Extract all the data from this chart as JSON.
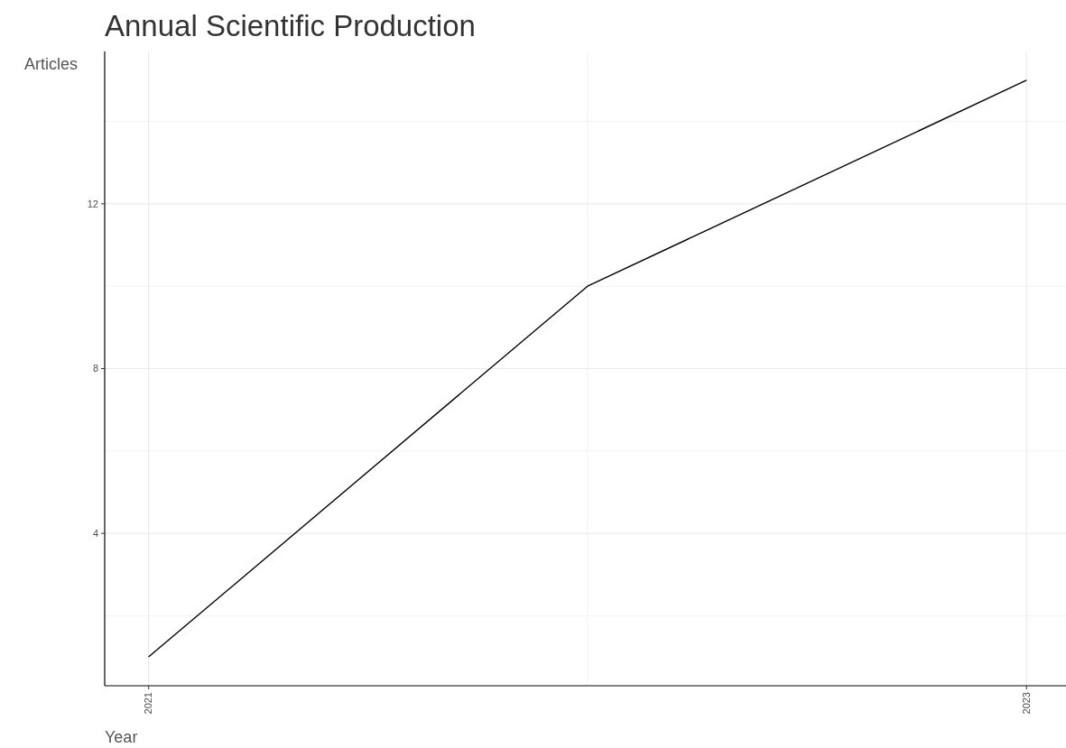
{
  "chart_data": {
    "type": "line",
    "title": "Annual Scientific Production",
    "xlabel": "Year",
    "ylabel": "Articles",
    "x": [
      2021,
      2022,
      2023
    ],
    "series": [
      {
        "color": "#000000",
        "values": [
          1,
          10,
          15
        ]
      }
    ],
    "xlim": [
      2020.9,
      2023.09
    ],
    "xticks": [
      2021,
      2023
    ],
    "ylim": [
      0.3,
      15.7
    ],
    "yticks": [
      4,
      8,
      12
    ],
    "grid": true,
    "marker": "none",
    "line_style": "solid"
  }
}
